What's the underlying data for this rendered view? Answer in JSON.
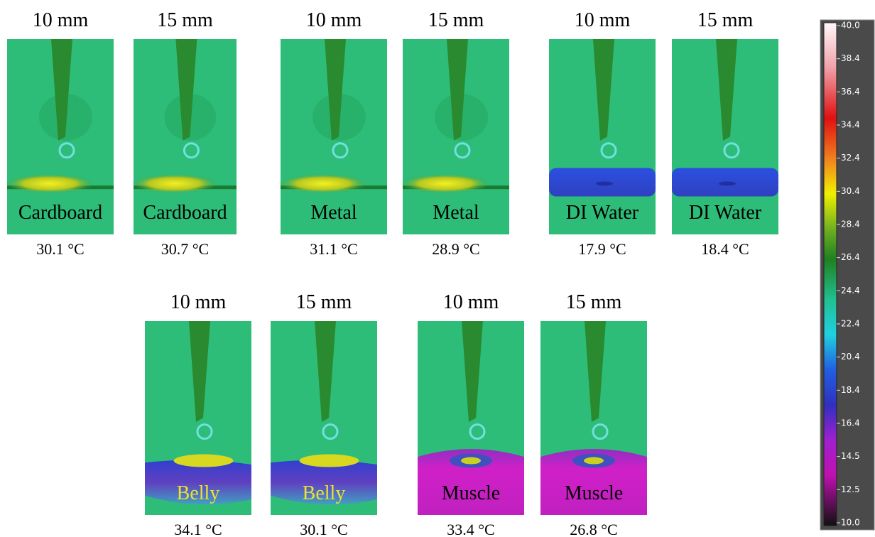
{
  "panels": [
    {
      "distance": "10 mm",
      "material": "Cardboard",
      "temperature": "30.1 °C"
    },
    {
      "distance": "15 mm",
      "material": "Cardboard",
      "temperature": "30.7 °C"
    },
    {
      "distance": "10 mm",
      "material": "Metal",
      "temperature": "31.1 °C"
    },
    {
      "distance": "15 mm",
      "material": "Metal",
      "temperature": "28.9 °C"
    },
    {
      "distance": "10 mm",
      "material": "DI Water",
      "temperature": "17.9 °C"
    },
    {
      "distance": "15 mm",
      "material": "DI Water",
      "temperature": "18.4 °C"
    },
    {
      "distance": "10 mm",
      "material": "Belly",
      "temperature": "34.1 °C"
    },
    {
      "distance": "15 mm",
      "material": "Belly",
      "temperature": "30.1 °C"
    },
    {
      "distance": "10 mm",
      "material": "Muscle",
      "temperature": "33.4 °C"
    },
    {
      "distance": "15 mm",
      "material": "Muscle",
      "temperature": "26.8 °C"
    }
  ],
  "colorbar": {
    "ticks": [
      "40.0",
      "38.4",
      "36.4",
      "34.4",
      "32.4",
      "30.4",
      "28.4",
      "26.4",
      "24.4",
      "22.4",
      "20.4",
      "18.4",
      "16.4",
      "14.5",
      "12.5",
      "10.0"
    ]
  }
}
